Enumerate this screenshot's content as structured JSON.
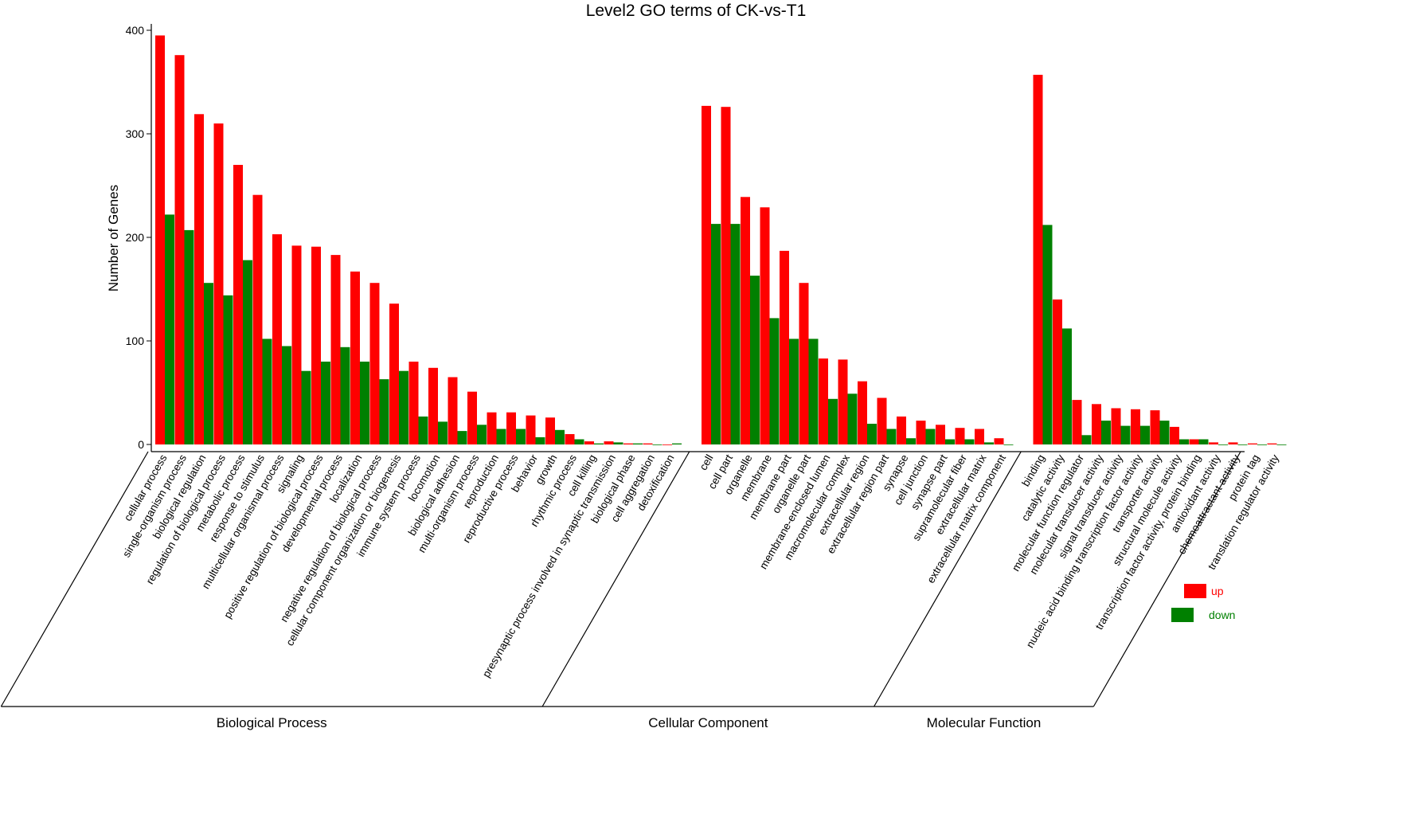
{
  "chart_data": {
    "type": "bar",
    "title": "Level2 GO terms of CK-vs-T1",
    "ylabel": "Number of Genes",
    "xlabel": "",
    "ylim": [
      0,
      400
    ],
    "yticks": [
      "0",
      "100",
      "200",
      "300",
      "400"
    ],
    "grid": false,
    "legend_position": "right",
    "colors": {
      "up": "#ff0000",
      "down": "#008000"
    },
    "series": [
      {
        "name": "up",
        "color": "#ff0000"
      },
      {
        "name": "down",
        "color": "#008000"
      }
    ],
    "groups": [
      {
        "name": "Biological Process",
        "categories": [
          {
            "label": "cellular process",
            "up": 395,
            "down": 222
          },
          {
            "label": "single-organism process",
            "up": 376,
            "down": 207
          },
          {
            "label": "biological regulation",
            "up": 319,
            "down": 156
          },
          {
            "label": "regulation of biological process",
            "up": 310,
            "down": 144
          },
          {
            "label": "metabolic process",
            "up": 270,
            "down": 178
          },
          {
            "label": "response to stimulus",
            "up": 241,
            "down": 102
          },
          {
            "label": "multicellular organismal process",
            "up": 203,
            "down": 95
          },
          {
            "label": "signaling",
            "up": 192,
            "down": 71
          },
          {
            "label": "positive regulation of biological process",
            "up": 191,
            "down": 80
          },
          {
            "label": "developmental process",
            "up": 183,
            "down": 94
          },
          {
            "label": "localization",
            "up": 167,
            "down": 80
          },
          {
            "label": "negative regulation of biological process",
            "up": 156,
            "down": 63
          },
          {
            "label": "cellular component organization or biogenesis",
            "up": 136,
            "down": 71
          },
          {
            "label": "immune system process",
            "up": 80,
            "down": 27
          },
          {
            "label": "locomotion",
            "up": 74,
            "down": 22
          },
          {
            "label": "biological adhesion",
            "up": 65,
            "down": 13
          },
          {
            "label": "multi-organism process",
            "up": 51,
            "down": 19
          },
          {
            "label": "reproduction",
            "up": 31,
            "down": 15
          },
          {
            "label": "reproductive process",
            "up": 31,
            "down": 15
          },
          {
            "label": "behavior",
            "up": 28,
            "down": 7
          },
          {
            "label": "growth",
            "up": 26,
            "down": 14
          },
          {
            "label": "rhythmic process",
            "up": 10,
            "down": 5
          },
          {
            "label": "cell killing",
            "up": 3,
            "down": 1
          },
          {
            "label": "presynaptic process involved in synaptic transmission",
            "up": 3,
            "down": 2
          },
          {
            "label": "biological phase",
            "up": 1,
            "down": 1
          },
          {
            "label": "cell aggregation",
            "up": 1,
            "down": 0
          },
          {
            "label": "detoxification",
            "up": 0,
            "down": 1
          }
        ]
      },
      {
        "name": "Cellular Component",
        "categories": [
          {
            "label": "cell",
            "up": 327,
            "down": 213
          },
          {
            "label": "cell part",
            "up": 326,
            "down": 213
          },
          {
            "label": "organelle",
            "up": 239,
            "down": 163
          },
          {
            "label": "membrane",
            "up": 229,
            "down": 122
          },
          {
            "label": "membrane part",
            "up": 187,
            "down": 102
          },
          {
            "label": "organelle part",
            "up": 156,
            "down": 102
          },
          {
            "label": "membrane-enclosed lumen",
            "up": 83,
            "down": 44
          },
          {
            "label": "macromolecular complex",
            "up": 82,
            "down": 49
          },
          {
            "label": "extracellular region",
            "up": 61,
            "down": 20
          },
          {
            "label": "extracellular region part",
            "up": 45,
            "down": 15
          },
          {
            "label": "synapse",
            "up": 27,
            "down": 6
          },
          {
            "label": "cell junction",
            "up": 23,
            "down": 15
          },
          {
            "label": "synapse part",
            "up": 19,
            "down": 5
          },
          {
            "label": "supramolecular fiber",
            "up": 16,
            "down": 5
          },
          {
            "label": "extracellular matrix",
            "up": 15,
            "down": 2
          },
          {
            "label": "extracellular matrix component",
            "up": 6,
            "down": 0
          }
        ]
      },
      {
        "name": "Molecular Function",
        "categories": [
          {
            "label": "binding",
            "up": 357,
            "down": 212
          },
          {
            "label": "catalytic activity",
            "up": 140,
            "down": 112
          },
          {
            "label": "molecular function regulator",
            "up": 43,
            "down": 9
          },
          {
            "label": "molecular transducer activity",
            "up": 39,
            "down": 23
          },
          {
            "label": "signal transducer activity",
            "up": 35,
            "down": 18
          },
          {
            "label": "nucleic acid binding transcription factor activity",
            "up": 34,
            "down": 18
          },
          {
            "label": "transporter activity",
            "up": 33,
            "down": 23
          },
          {
            "label": "structural molecule activity",
            "up": 17,
            "down": 5
          },
          {
            "label": "transcription factor activity, protein binding",
            "up": 5,
            "down": 5
          },
          {
            "label": "antioxidant activity",
            "up": 2,
            "down": 0
          },
          {
            "label": "chemoattractant activity",
            "up": 2,
            "down": 0
          },
          {
            "label": "protein tag",
            "up": 1,
            "down": 0
          },
          {
            "label": "translation regulator activity",
            "up": 1,
            "down": 0
          }
        ]
      }
    ]
  }
}
